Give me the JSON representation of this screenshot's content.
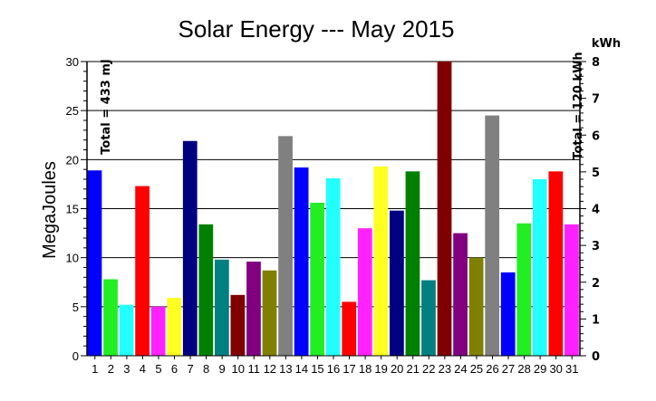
{
  "chart_data": {
    "type": "bar",
    "title": "Solar Energy --- May 2015",
    "ylabel": "MegaJoules",
    "y2label": "kWh",
    "ylim": [
      0,
      30
    ],
    "y2lim": [
      0,
      8
    ],
    "yticks": [
      "0",
      "5",
      "10",
      "15",
      "20",
      "25",
      "30"
    ],
    "y2ticks": [
      "0",
      "1",
      "2",
      "3",
      "4",
      "5",
      "6",
      "7",
      "8"
    ],
    "total_left": "Total = 433 mJ",
    "total_right": "Total = 120 kWh",
    "grid": "horizontal",
    "categories": [
      "1",
      "2",
      "3",
      "4",
      "5",
      "6",
      "7",
      "8",
      "9",
      "10",
      "11",
      "12",
      "13",
      "14",
      "15",
      "16",
      "17",
      "18",
      "19",
      "20",
      "21",
      "22",
      "23",
      "24",
      "25",
      "26",
      "27",
      "28",
      "29",
      "30",
      "31"
    ],
    "values": [
      18.9,
      7.8,
      5.2,
      17.3,
      5.0,
      5.9,
      21.9,
      13.4,
      9.8,
      6.2,
      9.6,
      8.7,
      22.4,
      19.2,
      15.6,
      18.1,
      5.5,
      13.0,
      19.3,
      14.8,
      18.8,
      7.7,
      30.0,
      12.5,
      10.0,
      24.5,
      8.5,
      13.5,
      18.0,
      18.8,
      13.4
    ],
    "colors": [
      "#0000ff",
      "#22ee22",
      "#22ffff",
      "#ff0000",
      "#ff22ff",
      "#ffff22",
      "#000080",
      "#008000",
      "#008080",
      "#800000",
      "#800080",
      "#808000",
      "#808080",
      "#0000ff",
      "#22ee22",
      "#22ffff",
      "#ff0000",
      "#ff22ff",
      "#ffff22",
      "#000080",
      "#008000",
      "#008080",
      "#800000",
      "#800080",
      "#808000",
      "#808080",
      "#0000ff",
      "#22ee22",
      "#22ffff",
      "#ff0000",
      "#ff22ff"
    ]
  }
}
